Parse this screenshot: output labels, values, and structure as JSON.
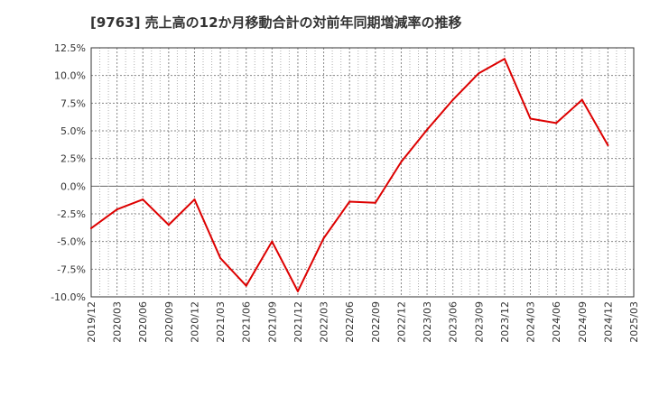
{
  "chart_data": {
    "type": "line",
    "title": "[9763]  売上高の12か月移動合計の対前年同期増減率の推移",
    "xlabel": "",
    "ylabel": "",
    "ylim": [
      -10.0,
      12.5
    ],
    "yticks": [
      12.5,
      10.0,
      7.5,
      5.0,
      2.5,
      0.0,
      -2.5,
      -5.0,
      -7.5,
      -10.0
    ],
    "ytick_labels": [
      "12.5%",
      "10.0%",
      "7.5%",
      "5.0%",
      "2.5%",
      "0.0%",
      "-2.5%",
      "-5.0%",
      "-7.5%",
      "-10.0%"
    ],
    "categories": [
      "2019/12",
      "2020/03",
      "2020/06",
      "2020/09",
      "2020/12",
      "2021/03",
      "2021/06",
      "2021/09",
      "2021/12",
      "2022/03",
      "2022/06",
      "2022/09",
      "2022/12",
      "2023/03",
      "2023/06",
      "2023/09",
      "2023/12",
      "2024/03",
      "2024/06",
      "2024/09",
      "2024/12",
      "2025/03"
    ],
    "series": [
      {
        "name": "売上高の12か月移動合計の対前年同期増減率",
        "color": "#dd0000",
        "values": [
          -3.8,
          -2.1,
          -1.2,
          -3.5,
          -1.2,
          -6.5,
          -9.0,
          -5.0,
          -9.5,
          -4.7,
          -1.4,
          -1.5,
          2.2,
          5.1,
          7.8,
          10.2,
          11.5,
          6.1,
          5.7,
          7.8,
          3.7,
          null
        ]
      }
    ],
    "grid": true,
    "legend": "none"
  }
}
